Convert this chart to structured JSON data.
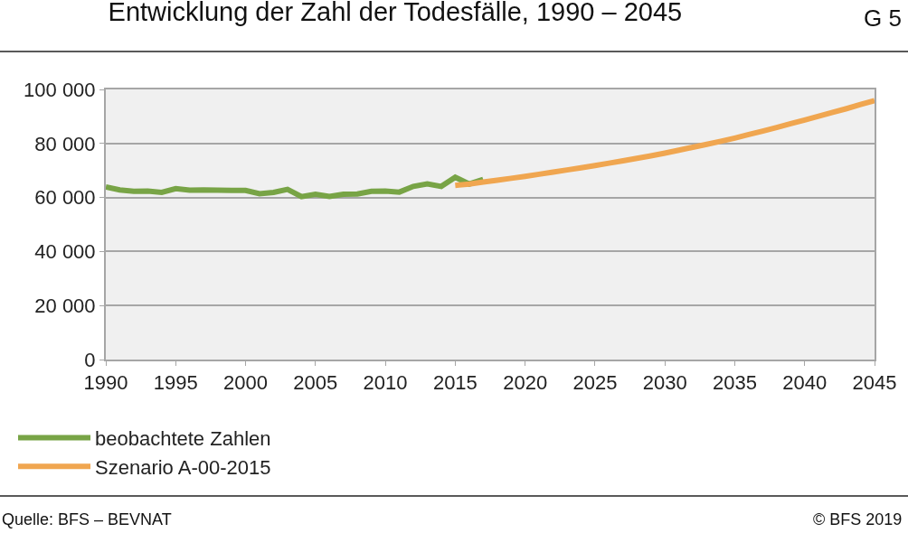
{
  "chart_data": {
    "type": "line",
    "title": "Entwicklung der Zahl der Todesfälle, 1990 – 2045",
    "annotations": [
      "G 5",
      "Quelle: BFS – BEVNAT",
      "© BFS 2019"
    ],
    "series": [
      {
        "name": "beobachtete Zahlen",
        "color": "#78a446",
        "x": [
          1990,
          1991,
          1992,
          1993,
          1994,
          1995,
          1996,
          1997,
          1998,
          1999,
          2000,
          2001,
          2002,
          2003,
          2004,
          2005,
          2006,
          2007,
          2008,
          2009,
          2010,
          2011,
          2012,
          2013,
          2014,
          2015,
          2016,
          2017
        ],
        "values": [
          63900,
          62800,
          62300,
          62400,
          61900,
          63300,
          62700,
          62800,
          62700,
          62600,
          62600,
          61400,
          61900,
          63000,
          60300,
          61200,
          60400,
          61200,
          61300,
          62300,
          62400,
          62000,
          64100,
          65000,
          64100,
          67500,
          65000,
          66700
        ]
      },
      {
        "name": "Szenario A-00-2015",
        "color": "#f0a650",
        "x": [
          2015,
          2016,
          2017,
          2018,
          2019,
          2020,
          2021,
          2022,
          2023,
          2024,
          2025,
          2026,
          2027,
          2028,
          2029,
          2030,
          2031,
          2032,
          2033,
          2034,
          2035,
          2036,
          2037,
          2038,
          2039,
          2040,
          2041,
          2042,
          2043,
          2044,
          2045
        ],
        "values": [
          64500,
          65000,
          65700,
          66400,
          67100,
          67800,
          68600,
          69400,
          70200,
          71000,
          71800,
          72700,
          73600,
          74500,
          75400,
          76400,
          77500,
          78600,
          79700,
          80800,
          82000,
          83300,
          84600,
          85900,
          87300,
          88700,
          90100,
          91500,
          92900,
          94400,
          95900
        ]
      }
    ],
    "xlim": [
      1990,
      2045
    ],
    "xticks": [
      1990,
      1995,
      2000,
      2005,
      2010,
      2015,
      2020,
      2025,
      2030,
      2035,
      2040,
      2045
    ],
    "ylim": [
      0,
      100000
    ],
    "yticks": [
      0,
      {
        "value": 20000,
        "label": "20 000"
      },
      {
        "value": 40000,
        "label": "40 000"
      },
      {
        "value": 60000,
        "label": "60 000"
      },
      {
        "value": 80000,
        "label": "80 000"
      },
      {
        "value": 100000,
        "label": "100 000"
      }
    ],
    "grid": "y",
    "legend": "bottom",
    "marker": "none",
    "line_style": "solid"
  }
}
